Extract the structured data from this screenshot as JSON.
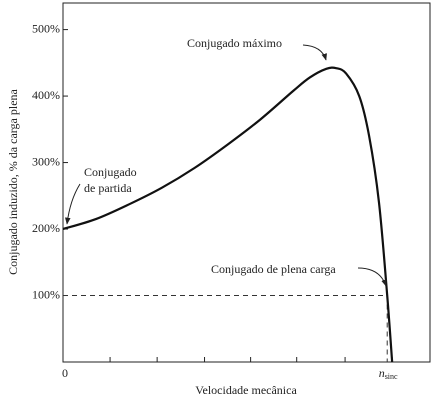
{
  "chart_data": {
    "type": "line",
    "y_label": "Conjugado induzido, % da carga plena",
    "x_label": "Velocidade mecânica",
    "x": [
      0,
      0.1,
      0.2,
      0.3,
      0.4,
      0.5,
      0.6,
      0.7,
      0.75,
      0.8,
      0.83,
      0.86,
      0.9,
      0.93,
      0.96,
      0.985,
      1.0
    ],
    "values": [
      200,
      215,
      237,
      262,
      292,
      327,
      365,
      408,
      428,
      441,
      442,
      434,
      400,
      340,
      240,
      100,
      0
    ],
    "color": "#111111",
    "xlim": [
      0,
      1.115
    ],
    "ylim": [
      0,
      540
    ],
    "xticks": [
      0,
      {
        "value": 1,
        "label": "n",
        "subscript": "sinc"
      }
    ],
    "xminorticks": [
      0.143,
      0.286,
      0.43,
      0.57,
      0.71,
      0.857
    ],
    "yticks": [
      {
        "value": 100,
        "label": "100%"
      },
      {
        "value": 200,
        "label": "200%"
      },
      {
        "value": 300,
        "label": "300%"
      },
      {
        "value": 400,
        "label": "400%"
      },
      {
        "value": 500,
        "label": "500%"
      }
    ],
    "annotations": {
      "max": {
        "text": "Conjugado máximo"
      },
      "start": {
        "lines": [
          "Conjugado",
          "de partida"
        ]
      },
      "full_load": {
        "text": "Conjugado de plena carga"
      }
    }
  }
}
